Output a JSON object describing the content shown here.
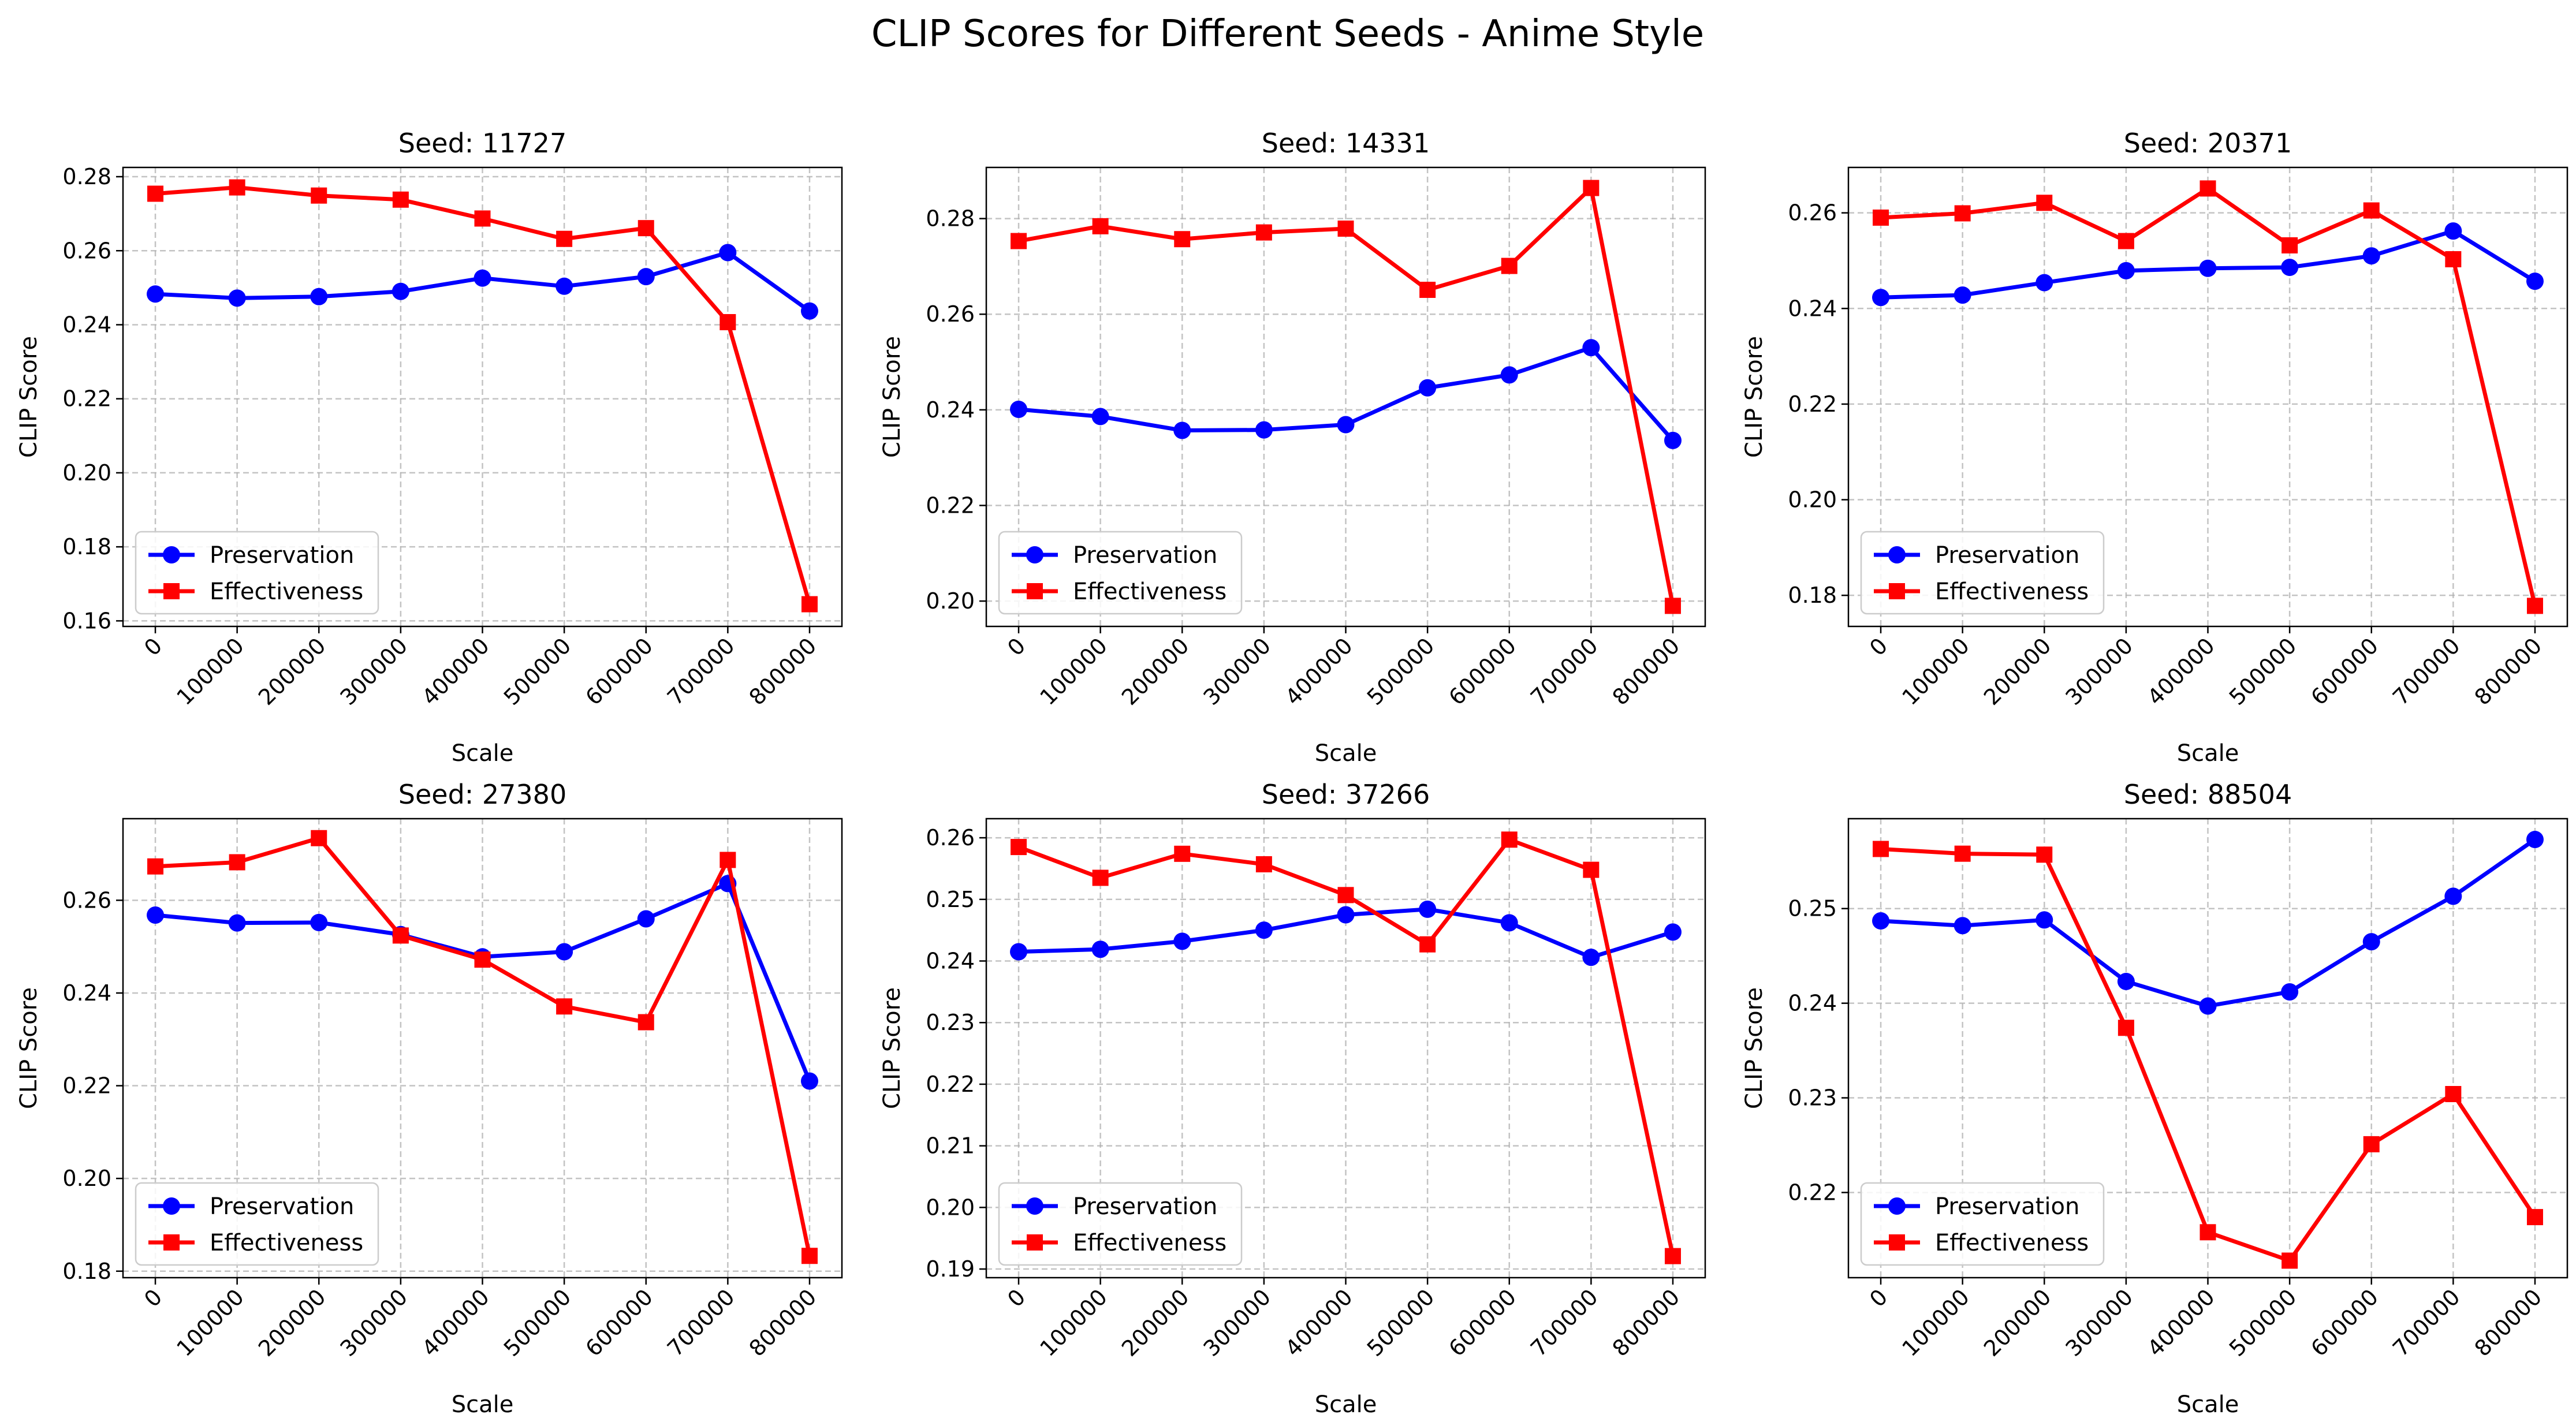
{
  "figure": {
    "suptitle": "CLIP Scores for Different Seeds - Anime Style",
    "colors": {
      "preservation": "#0000ff",
      "effectiveness": "#ff0000",
      "grid": "#b0b0b0"
    }
  },
  "chart_data": [
    {
      "type": "line",
      "title": "Seed: 11727",
      "xlabel": "Scale",
      "ylabel": "CLIP Score",
      "x": [
        0,
        100000,
        200000,
        300000,
        400000,
        500000,
        600000,
        700000,
        800000
      ],
      "x_tick_labels": [
        "0",
        "100000",
        "200000",
        "300000",
        "400000",
        "500000",
        "600000",
        "700000",
        "800000"
      ],
      "y_ticks": [
        0.16,
        0.18,
        0.2,
        0.22,
        0.24,
        0.26,
        0.28
      ],
      "y_tick_labels": [
        "0.16",
        "0.18",
        "0.20",
        "0.22",
        "0.24",
        "0.26",
        "0.28"
      ],
      "ylim": [
        0.1585,
        0.2825
      ],
      "grid": true,
      "legend_position": "lower-left",
      "series": [
        {
          "name": "Preservation",
          "marker": "circle",
          "values": [
            0.2483,
            0.2472,
            0.2476,
            0.249,
            0.2526,
            0.2504,
            0.253,
            0.2595,
            0.2437
          ]
        },
        {
          "name": "Effectiveness",
          "marker": "square",
          "values": [
            0.2754,
            0.2771,
            0.2749,
            0.2738,
            0.2687,
            0.2632,
            0.2661,
            0.2407,
            0.1645
          ]
        }
      ]
    },
    {
      "type": "line",
      "title": "Seed: 14331",
      "xlabel": "Scale",
      "ylabel": "CLIP Score",
      "x": [
        0,
        100000,
        200000,
        300000,
        400000,
        500000,
        600000,
        700000,
        800000
      ],
      "x_tick_labels": [
        "0",
        "100000",
        "200000",
        "300000",
        "400000",
        "500000",
        "600000",
        "700000",
        "800000"
      ],
      "y_ticks": [
        0.2,
        0.22,
        0.24,
        0.26,
        0.28
      ],
      "y_tick_labels": [
        "0.20",
        "0.22",
        "0.24",
        "0.26",
        "0.28"
      ],
      "ylim": [
        0.1947,
        0.2907
      ],
      "grid": true,
      "legend_position": "lower-left",
      "series": [
        {
          "name": "Preservation",
          "marker": "circle",
          "values": [
            0.2401,
            0.2386,
            0.2357,
            0.2358,
            0.2369,
            0.2446,
            0.2473,
            0.253,
            0.2336
          ]
        },
        {
          "name": "Effectiveness",
          "marker": "square",
          "values": [
            0.2753,
            0.2784,
            0.2757,
            0.2771,
            0.2779,
            0.2651,
            0.2701,
            0.2864,
            0.199
          ]
        }
      ]
    },
    {
      "type": "line",
      "title": "Seed: 20371",
      "xlabel": "Scale",
      "ylabel": "CLIP Score",
      "x": [
        0,
        100000,
        200000,
        300000,
        400000,
        500000,
        600000,
        700000,
        800000
      ],
      "x_tick_labels": [
        "0",
        "100000",
        "200000",
        "300000",
        "400000",
        "500000",
        "600000",
        "700000",
        "800000"
      ],
      "y_ticks": [
        0.18,
        0.2,
        0.22,
        0.24,
        0.26
      ],
      "y_tick_labels": [
        "0.18",
        "0.20",
        "0.22",
        "0.24",
        "0.26"
      ],
      "ylim": [
        0.1735,
        0.2695
      ],
      "grid": true,
      "legend_position": "lower-left",
      "series": [
        {
          "name": "Preservation",
          "marker": "circle",
          "values": [
            0.2423,
            0.2428,
            0.2454,
            0.2479,
            0.2484,
            0.2486,
            0.251,
            0.2562,
            0.2457
          ]
        },
        {
          "name": "Effectiveness",
          "marker": "square",
          "values": [
            0.259,
            0.2599,
            0.2621,
            0.2541,
            0.2651,
            0.2532,
            0.2605,
            0.2503,
            0.1778
          ]
        }
      ]
    },
    {
      "type": "line",
      "title": "Seed: 27380",
      "xlabel": "Scale",
      "ylabel": "CLIP Score",
      "x": [
        0,
        100000,
        200000,
        300000,
        400000,
        500000,
        600000,
        700000,
        800000
      ],
      "x_tick_labels": [
        "0",
        "100000",
        "200000",
        "300000",
        "400000",
        "500000",
        "600000",
        "700000",
        "800000"
      ],
      "y_ticks": [
        0.18,
        0.2,
        0.22,
        0.24,
        0.26
      ],
      "y_tick_labels": [
        "0.18",
        "0.20",
        "0.22",
        "0.24",
        "0.26"
      ],
      "ylim": [
        0.1786,
        0.2776
      ],
      "grid": true,
      "legend_position": "lower-left",
      "series": [
        {
          "name": "Preservation",
          "marker": "circle",
          "values": [
            0.2568,
            0.2551,
            0.2552,
            0.2526,
            0.2478,
            0.2489,
            0.256,
            0.2636,
            0.221
          ]
        },
        {
          "name": "Effectiveness",
          "marker": "square",
          "values": [
            0.2673,
            0.2682,
            0.2734,
            0.2524,
            0.2472,
            0.2371,
            0.2337,
            0.2687,
            0.1833
          ]
        }
      ]
    },
    {
      "type": "line",
      "title": "Seed: 37266",
      "xlabel": "Scale",
      "ylabel": "CLIP Score",
      "x": [
        0,
        100000,
        200000,
        300000,
        400000,
        500000,
        600000,
        700000,
        800000
      ],
      "x_tick_labels": [
        "0",
        "100000",
        "200000",
        "300000",
        "400000",
        "500000",
        "600000",
        "700000",
        "800000"
      ],
      "y_ticks": [
        0.19,
        0.2,
        0.21,
        0.22,
        0.23,
        0.24,
        0.25,
        0.26
      ],
      "y_tick_labels": [
        "0.19",
        "0.20",
        "0.21",
        "0.22",
        "0.23",
        "0.24",
        "0.25",
        "0.26"
      ],
      "ylim": [
        0.1886,
        0.2631
      ],
      "grid": true,
      "legend_position": "lower-left",
      "series": [
        {
          "name": "Preservation",
          "marker": "circle",
          "values": [
            0.2415,
            0.2419,
            0.2432,
            0.245,
            0.2475,
            0.2484,
            0.2462,
            0.2406,
            0.2447
          ]
        },
        {
          "name": "Effectiveness",
          "marker": "square",
          "values": [
            0.2585,
            0.2535,
            0.2574,
            0.2557,
            0.2507,
            0.2427,
            0.2597,
            0.2548,
            0.1921
          ]
        }
      ]
    },
    {
      "type": "line",
      "title": "Seed: 88504",
      "xlabel": "Scale",
      "ylabel": "CLIP Score",
      "x": [
        0,
        100000,
        200000,
        300000,
        400000,
        500000,
        600000,
        700000,
        800000
      ],
      "x_tick_labels": [
        "0",
        "100000",
        "200000",
        "300000",
        "400000",
        "500000",
        "600000",
        "700000",
        "800000"
      ],
      "y_ticks": [
        0.22,
        0.23,
        0.24,
        0.25
      ],
      "y_tick_labels": [
        "0.22",
        "0.23",
        "0.24",
        "0.25"
      ],
      "ylim": [
        0.211,
        0.2595
      ],
      "grid": true,
      "legend_position": "lower-left",
      "series": [
        {
          "name": "Preservation",
          "marker": "circle",
          "values": [
            0.2487,
            0.2482,
            0.2488,
            0.2423,
            0.2397,
            0.2412,
            0.2465,
            0.2513,
            0.2573
          ]
        },
        {
          "name": "Effectiveness",
          "marker": "square",
          "values": [
            0.2563,
            0.2558,
            0.2557,
            0.2374,
            0.2158,
            0.2128,
            0.2251,
            0.2304,
            0.2174
          ]
        }
      ]
    }
  ]
}
